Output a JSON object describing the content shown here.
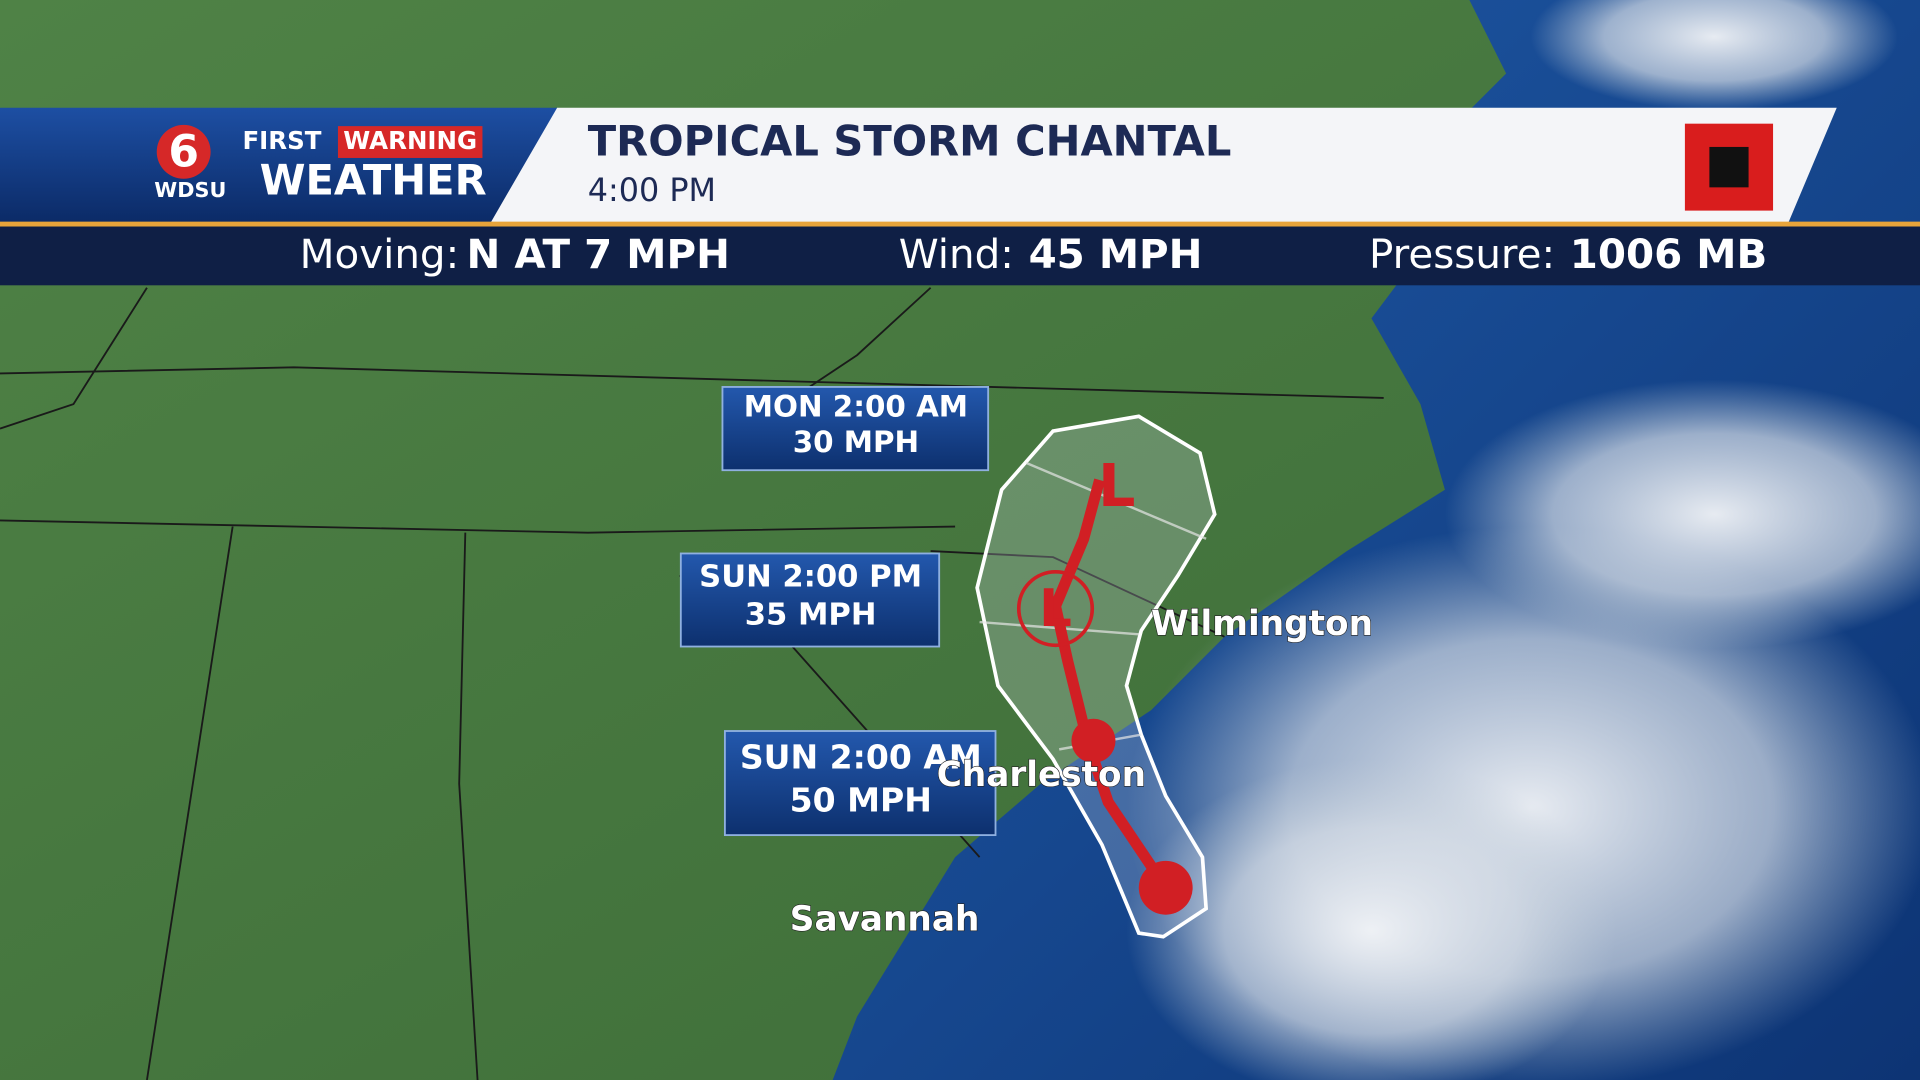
{
  "header": {
    "logo_number": "6",
    "first": "FIRST",
    "warning": "WARNING",
    "station": "WDSU",
    "weather": "WEATHER",
    "title": "TROPICAL STORM CHANTAL",
    "time": "4:00 PM"
  },
  "stats": [
    {
      "label": "Moving:",
      "value": "N AT 7 MPH"
    },
    {
      "label": "Wind:",
      "value": "45 MPH"
    },
    {
      "label": "Pressure:",
      "value": "1006 MB"
    }
  ],
  "forecast_points": [
    {
      "time": "MON 2:00 AM",
      "wind": "30 MPH"
    },
    {
      "time": "SUN 2:00 PM",
      "wind": "35 MPH"
    },
    {
      "time": "SUN 2:00 AM",
      "wind": "50 MPH"
    }
  ],
  "track_symbols": [
    "L",
    "L"
  ],
  "cities": [
    "Wilmington",
    "Charleston",
    "Savannah"
  ]
}
